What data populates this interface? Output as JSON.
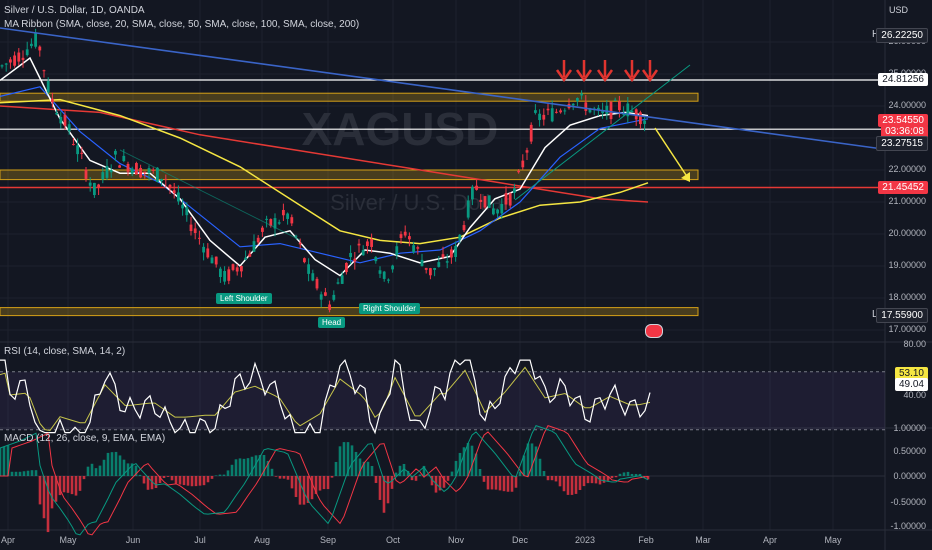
{
  "header": {
    "title": "Silver / U.S. Dollar, 1D, OANDA",
    "ma_ribbon": "MA Ribbon (SMA, close, 20, SMA, close, 50, SMA, close, 100, SMA, close, 200)",
    "rsi": "RSI (14, close, SMA, 14, 2)",
    "macd": "MACD (12, 26, close, 9, EMA, EMA)",
    "currency": "USD",
    "watermark_symbol": "XAGUSD",
    "watermark_name": "Silver / U.S. Dollar"
  },
  "colors": {
    "bg": "#131722",
    "up": "#089981",
    "down": "#f23645",
    "sma20": "#ffffff",
    "sma50": "#2962ff",
    "sma100": "#f5e642",
    "sma200": "#e53935",
    "trend": "#3a64c7",
    "zone": "#d4a017",
    "arrow": "#e0342f",
    "proj": "#f5e642",
    "rsi": "#ffffff",
    "rsi_ma": "#c5c34a",
    "macd": "#089981",
    "signal": "#f23645"
  },
  "price_axis": {
    "labels": [
      "26.00000",
      "25.00000",
      "24.00000",
      "23.00000",
      "22.00000",
      "21.00000",
      "20.00000",
      "19.00000",
      "18.00000",
      "17.00000"
    ],
    "high_label": "High",
    "high_value": "26.22250",
    "low_label": "Low",
    "low_value": "17.55900",
    "level_1": "24.81256",
    "current_price": "23.54550",
    "countdown": "03:36:08",
    "level_2": "23.27515",
    "level_3": "21.45452"
  },
  "rsi_axis": {
    "labels": [
      "80.00",
      "40.00"
    ],
    "value_1": "53.10",
    "value_2": "49.04"
  },
  "macd_axis": {
    "labels": [
      "1.00000",
      "0.50000",
      "0.00000",
      "-0.50000",
      "-1.00000"
    ]
  },
  "time_axis": [
    "Apr",
    "May",
    "Jun",
    "Jul",
    "Aug",
    "Sep",
    "Oct",
    "Nov",
    "Dec",
    "2023",
    "Feb",
    "Mar",
    "Apr",
    "May"
  ],
  "annotations": {
    "left_shoulder": "Left Shoulder",
    "head": "Head",
    "right_shoulder": "Right Shoulder"
  },
  "chart_data": {
    "type": "line",
    "title": "Silver / U.S. Dollar, 1D, OANDA",
    "x": [
      "Apr",
      "May",
      "Jun",
      "Jul",
      "Aug",
      "Sep",
      "Oct",
      "Nov",
      "Dec",
      "2023",
      "Feb"
    ],
    "ylim": [
      16.7,
      26.4
    ],
    "series": [
      {
        "name": "XAGUSD",
        "values": [
          25.0,
          23.0,
          22.2,
          19.1,
          20.1,
          18.3,
          19.2,
          20.6,
          23.0,
          24.1,
          23.5
        ]
      }
    ],
    "levels": [
      24.81256,
      23.27515,
      21.45452,
      17.559
    ],
    "zones": [
      [
        24.15,
        24.4
      ],
      [
        21.7,
        22.0
      ],
      [
        17.5,
        17.7
      ]
    ],
    "grid": true
  }
}
